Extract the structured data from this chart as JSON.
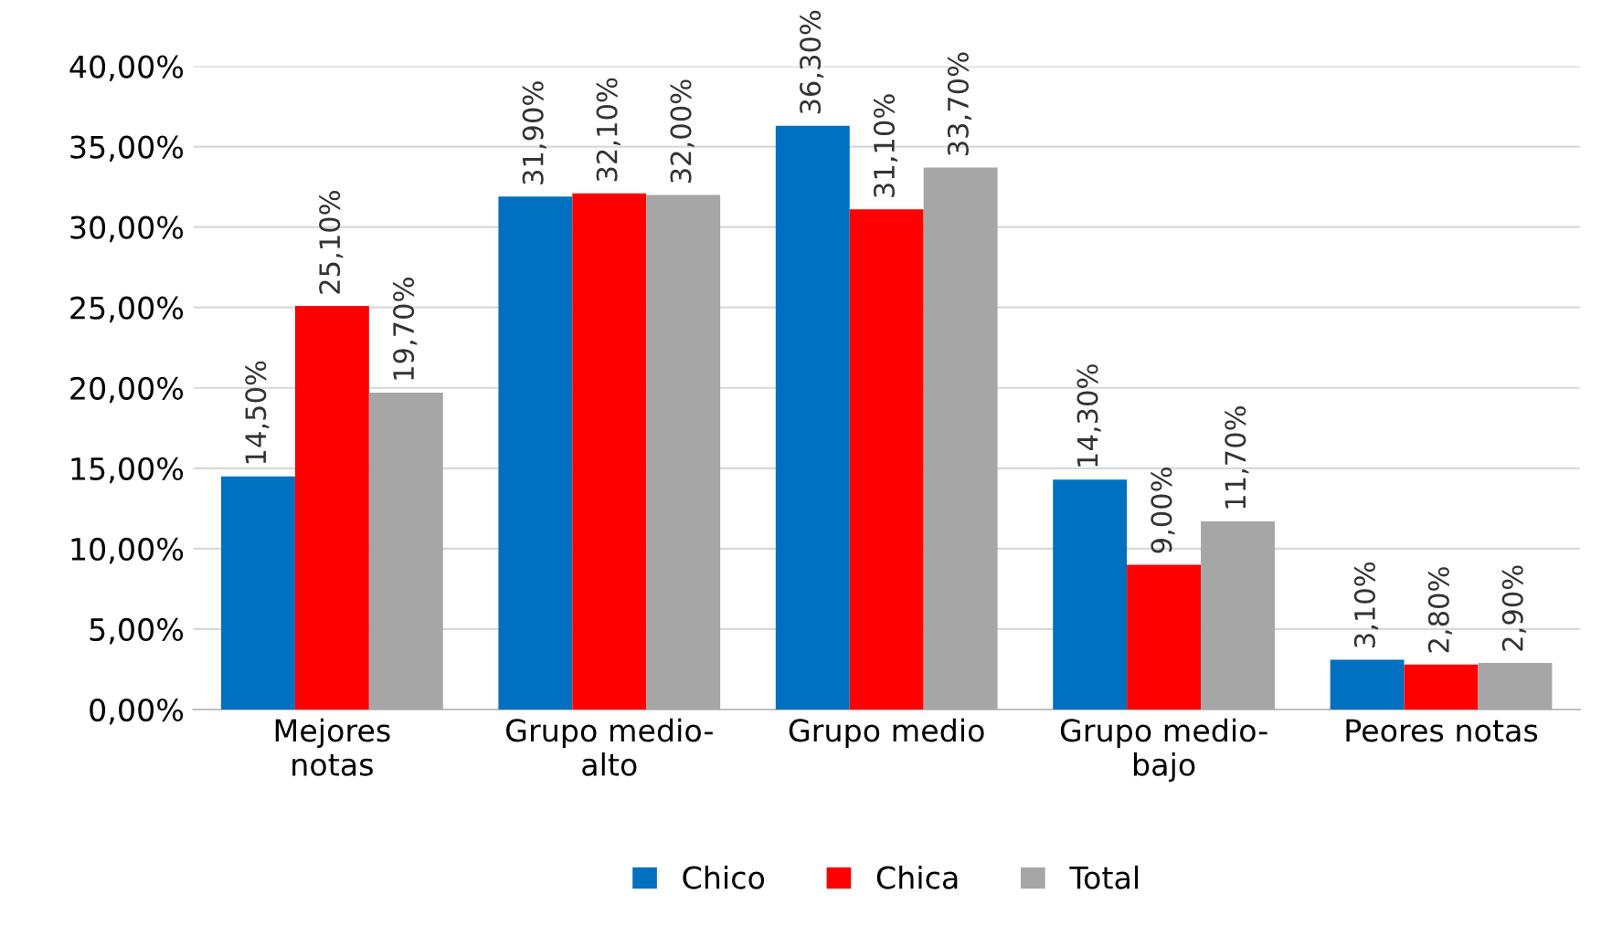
{
  "chart_data": {
    "type": "bar",
    "categories": [
      "Mejores\nnotas",
      "Grupo medio-\nalto",
      "Grupo medio",
      "Grupo medio-\nbajo",
      "Peores notas"
    ],
    "series": [
      {
        "name": "Chico",
        "color": "#0070c0",
        "values": [
          14.5,
          31.9,
          36.3,
          14.3,
          3.1
        ],
        "value_labels": [
          "14,50%",
          "31,90%",
          "36,30%",
          "14,30%",
          "3,10%"
        ]
      },
      {
        "name": "Chica",
        "color": "#ff0000",
        "values": [
          25.1,
          32.1,
          31.1,
          9.0,
          2.8
        ],
        "value_labels": [
          "25,10%",
          "32,10%",
          "31,10%",
          "9,00%",
          "2,80%"
        ]
      },
      {
        "name": "Total",
        "color": "#a6a6a6",
        "values": [
          19.7,
          32.0,
          33.7,
          11.7,
          2.9
        ],
        "value_labels": [
          "19,70%",
          "32,00%",
          "33,70%",
          "11,70%",
          "2,90%"
        ]
      }
    ],
    "ylim": [
      0,
      40
    ],
    "yticks": [
      {
        "value": 0,
        "label": "0,00%"
      },
      {
        "value": 5,
        "label": "5,00%"
      },
      {
        "value": 10,
        "label": "10,00%"
      },
      {
        "value": 15,
        "label": "15,00%"
      },
      {
        "value": 20,
        "label": "20,00%"
      },
      {
        "value": 25,
        "label": "25,00%"
      },
      {
        "value": 30,
        "label": "30,00%"
      },
      {
        "value": 35,
        "label": "35,00%"
      },
      {
        "value": 40,
        "label": "40,00%"
      }
    ],
    "grid": "y",
    "legend": "bottom"
  }
}
